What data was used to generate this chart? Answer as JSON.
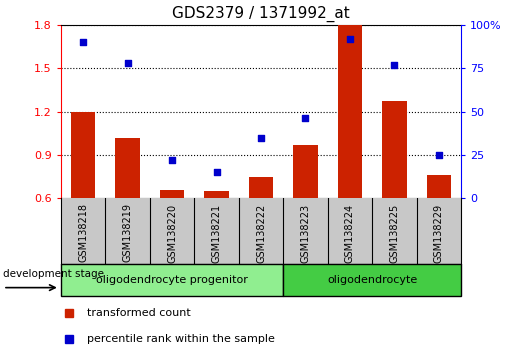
{
  "title": "GDS2379 / 1371992_at",
  "samples": [
    "GSM138218",
    "GSM138219",
    "GSM138220",
    "GSM138221",
    "GSM138222",
    "GSM138223",
    "GSM138224",
    "GSM138225",
    "GSM138229"
  ],
  "transformed_count": [
    1.2,
    1.02,
    0.66,
    0.65,
    0.75,
    0.97,
    1.8,
    1.27,
    0.76
  ],
  "percentile_rank": [
    90,
    78,
    22,
    15,
    35,
    46,
    92,
    77,
    25
  ],
  "ylim_left": [
    0.6,
    1.8
  ],
  "ylim_right": [
    0,
    100
  ],
  "yticks_left": [
    0.6,
    0.9,
    1.2,
    1.5,
    1.8
  ],
  "yticks_right": [
    0,
    25,
    50,
    75,
    100
  ],
  "ytick_labels_right": [
    "0",
    "25",
    "50",
    "75",
    "100%"
  ],
  "groups": [
    {
      "label": "oligodendrocyte progenitor",
      "start": 0,
      "end": 5,
      "color": "#90EE90"
    },
    {
      "label": "oligodendrocyte",
      "start": 5,
      "end": 9,
      "color": "#44CC44"
    }
  ],
  "bar_color": "#CC2200",
  "scatter_color": "#0000CC",
  "grid_color": "black",
  "xlab_bg_color": "#C8C8C8",
  "legend_red_label": "transformed count",
  "legend_blue_label": "percentile rank within the sample",
  "dev_stage_label": "development stage",
  "title_fontsize": 11,
  "tick_fontsize": 8,
  "label_fontsize": 8
}
